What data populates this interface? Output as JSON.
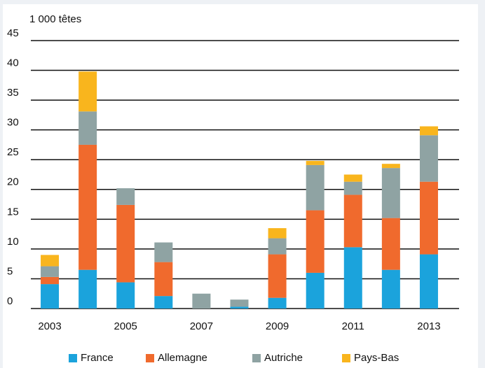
{
  "chart_data": {
    "type": "stacked_bar",
    "y_label": "1 000 têtes",
    "categories": [
      "2003",
      null,
      "2005",
      null,
      "2007",
      null,
      "2009",
      null,
      "2011",
      null,
      "2013"
    ],
    "series": [
      {
        "name": "France",
        "color": "#1ba3dc",
        "values": [
          4.1,
          6.5,
          4.4,
          2.1,
          0,
          0.3,
          1.8,
          6.0,
          10.3,
          6.5,
          9.1
        ]
      },
      {
        "name": "Allemagne",
        "color": "#f06a2d",
        "values": [
          1.2,
          21,
          13,
          5.7,
          0,
          0,
          7.3,
          10.5,
          8.8,
          8.7,
          12.2
        ]
      },
      {
        "name": "Autriche",
        "color": "#8fa3a3",
        "values": [
          1.8,
          5.6,
          2.8,
          3.3,
          2.5,
          1.2,
          2.7,
          7.6,
          2.2,
          8.4,
          7.8
        ]
      },
      {
        "name": "Pays-Bas",
        "color": "#f9b51d",
        "values": [
          1.9,
          6.7,
          0,
          0,
          0,
          0,
          1.7,
          0.7,
          1.2,
          0.7,
          1.5
        ]
      }
    ],
    "ylim": [
      0,
      45
    ],
    "yticks": [
      0,
      5,
      10,
      15,
      20,
      25,
      30,
      35,
      40,
      45
    ],
    "grid": true
  }
}
